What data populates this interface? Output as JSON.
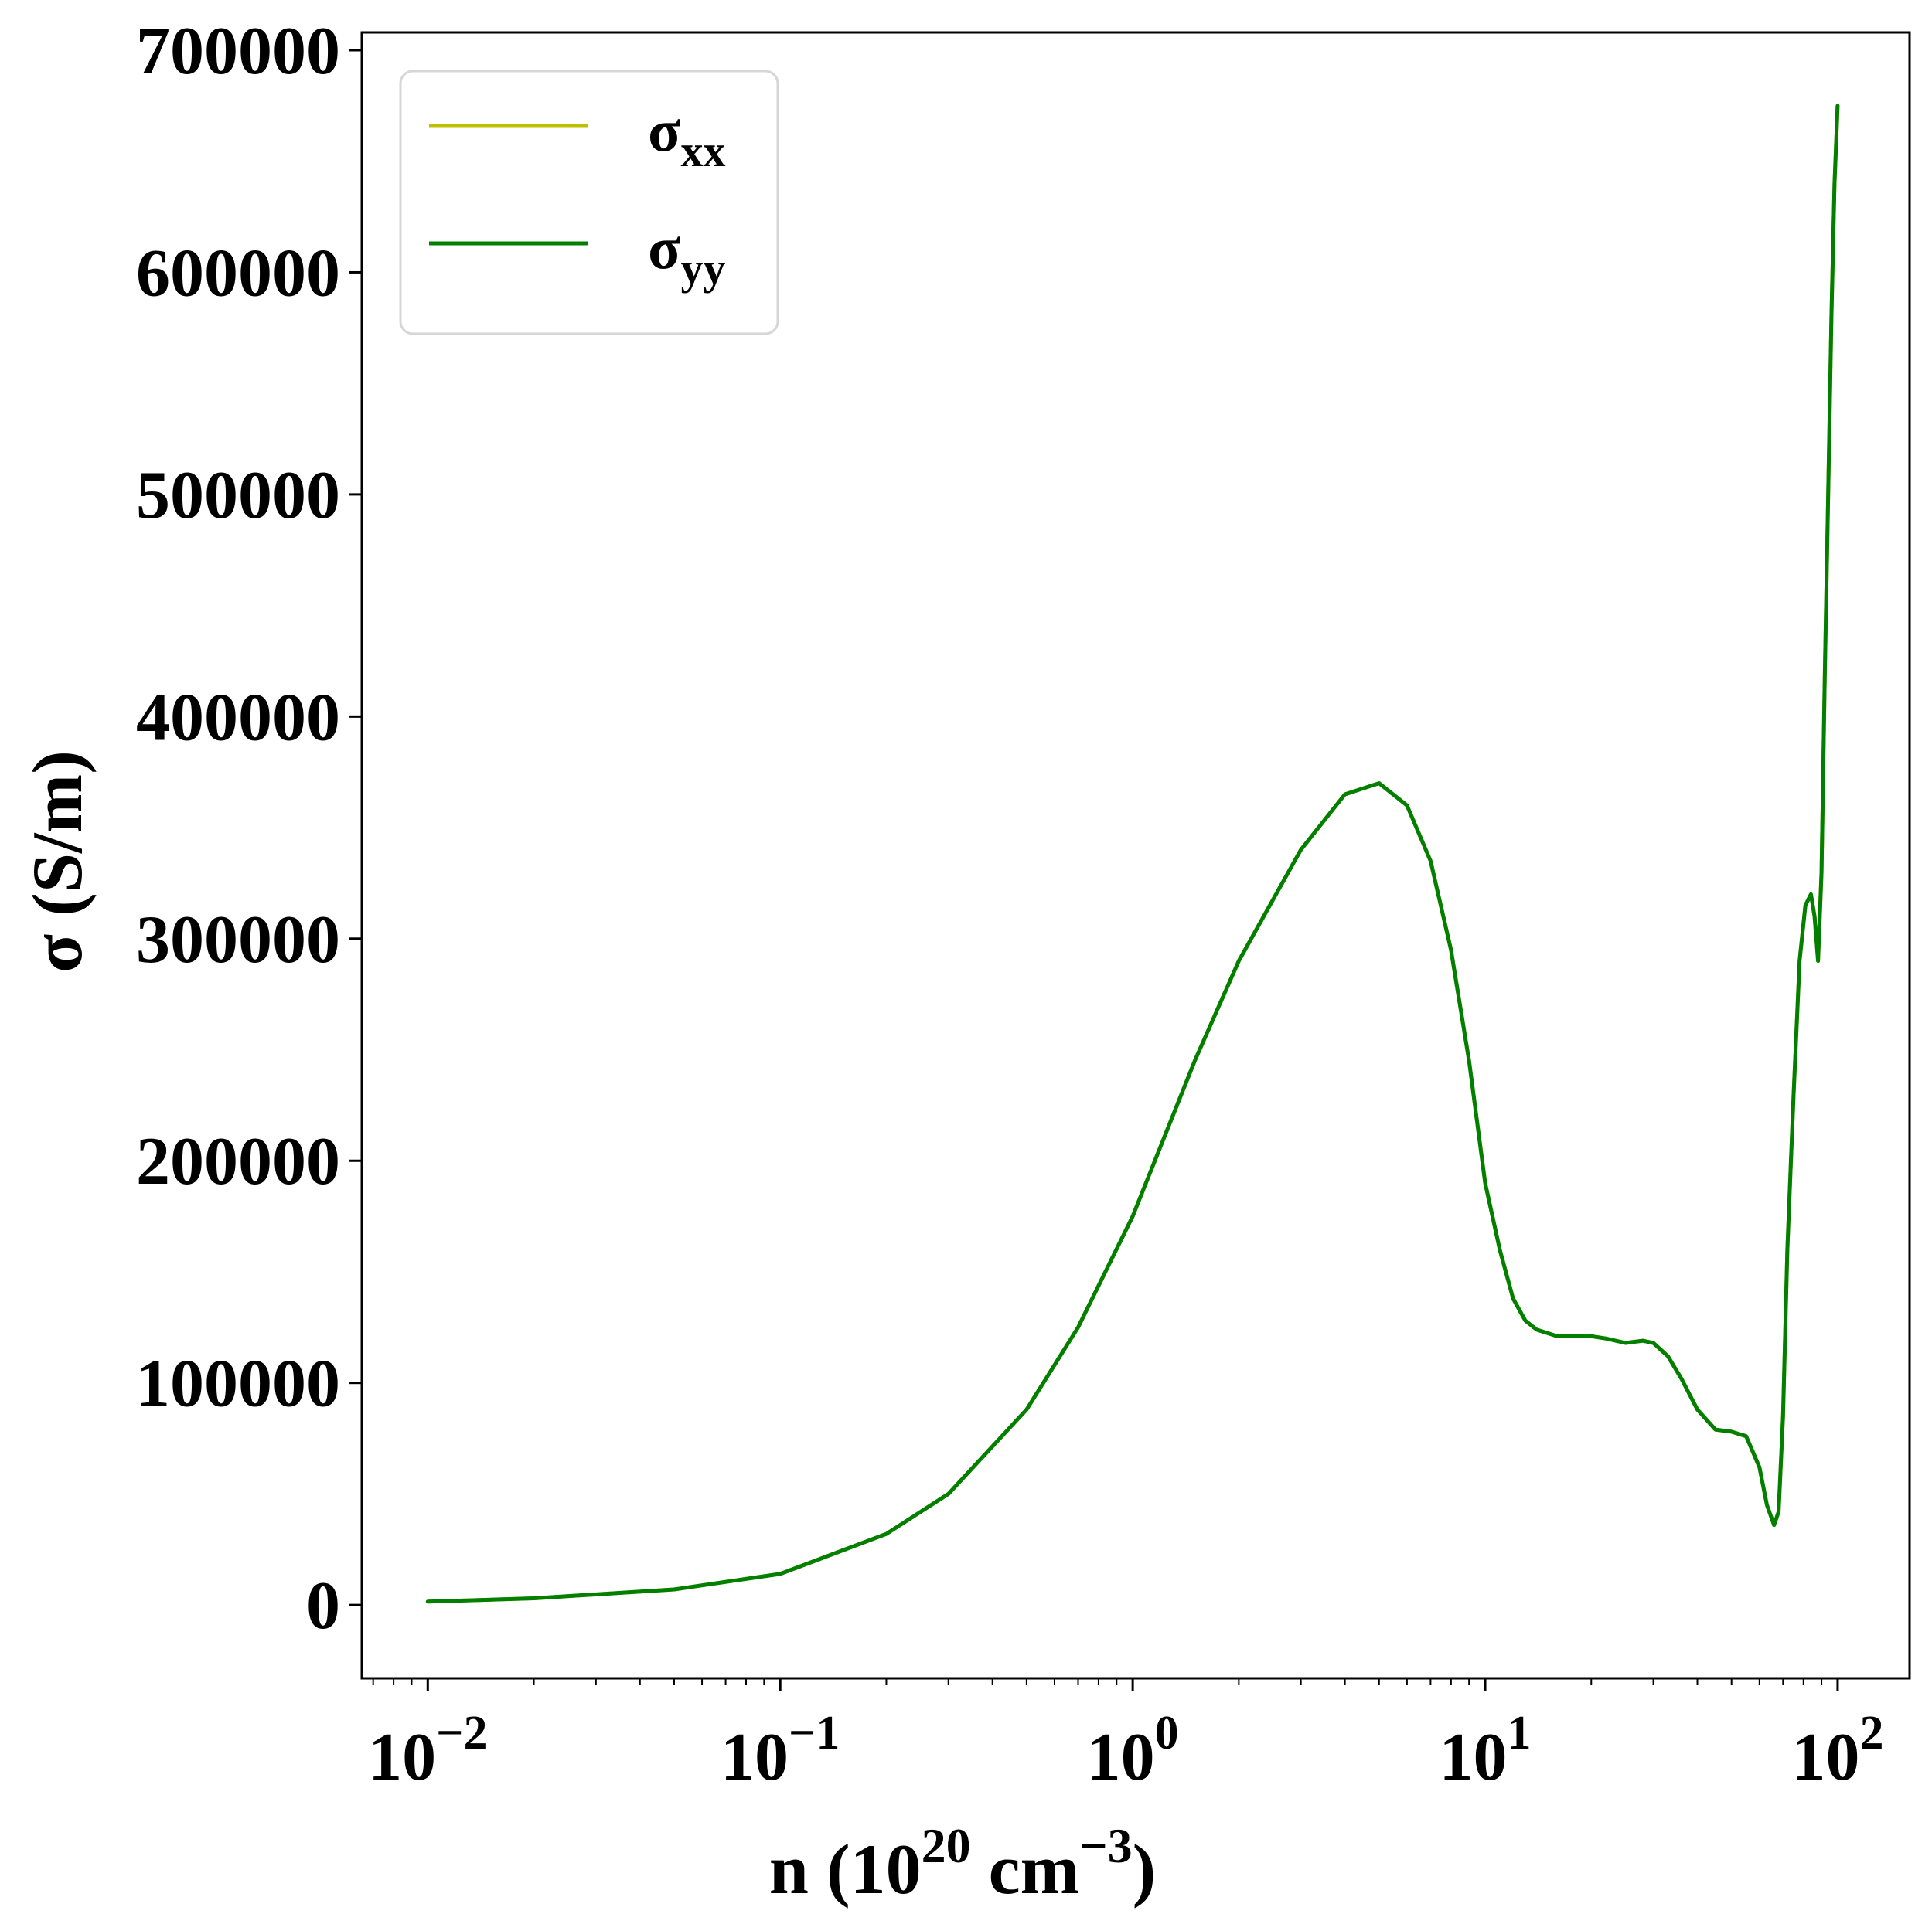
{
  "chart_data": {
    "type": "line",
    "title": "",
    "xlabel": {
      "base": "n (10",
      "sup1": "20",
      "mid": " cm",
      "sup2": "−3",
      "end": ")"
    },
    "ylabel": "σ (S/m)",
    "xscale": "log",
    "xlim": [
      0.0065,
      160
    ],
    "ylim": [
      -33000,
      708000
    ],
    "x_ticks": [
      {
        "base": "10",
        "exp": "−2",
        "value": 0.01
      },
      {
        "base": "10",
        "exp": "−1",
        "value": 0.1
      },
      {
        "base": "10",
        "exp": "0",
        "value": 1
      },
      {
        "base": "10",
        "exp": "1",
        "value": 10
      },
      {
        "base": "10",
        "exp": "2",
        "value": 100
      }
    ],
    "y_ticks": [
      {
        "label": "0",
        "value": 0
      },
      {
        "label": "100000",
        "value": 100000
      },
      {
        "label": "200000",
        "value": 200000
      },
      {
        "label": "300000",
        "value": 300000
      },
      {
        "label": "400000",
        "value": 400000
      },
      {
        "label": "500000",
        "value": 500000
      },
      {
        "label": "600000",
        "value": 600000
      },
      {
        "label": "700000",
        "value": 700000
      }
    ],
    "grid": false,
    "legend_position": "upper-left",
    "series": [
      {
        "name_base": "σ",
        "name_sub": "xx",
        "color": "#bfbf00",
        "x": [
          0.01,
          0.02,
          0.05,
          0.1,
          0.2,
          0.3,
          0.5,
          0.7,
          1.0,
          1.5,
          2.0,
          3.0,
          4.0,
          5.0,
          6.0,
          7.0,
          8.0,
          9.0,
          10,
          11,
          12,
          13,
          14,
          16,
          18,
          20,
          22,
          25,
          28,
          30,
          33,
          36,
          40,
          45,
          50,
          55,
          60,
          63,
          66,
          68,
          70,
          72,
          75,
          78,
          81,
          84,
          86,
          88,
          90,
          92,
          94,
          96,
          98,
          100
        ],
        "y": [
          1500,
          3000,
          7000,
          14000,
          32000,
          50000,
          88000,
          125000,
          175000,
          245000,
          290000,
          340000,
          365000,
          370000,
          360000,
          335000,
          295000,
          245000,
          190000,
          160000,
          138000,
          128000,
          124000,
          121000,
          121000,
          121000,
          120000,
          118000,
          119000,
          118000,
          112000,
          102000,
          88000,
          79000,
          78000,
          76000,
          62000,
          45000,
          36000,
          42000,
          85000,
          160000,
          230000,
          290000,
          315000,
          320000,
          310000,
          290000,
          330000,
          420000,
          500000,
          580000,
          640000,
          675000
        ]
      },
      {
        "name_base": "σ",
        "name_sub": "yy",
        "color": "#007f00",
        "x": [
          0.01,
          0.02,
          0.05,
          0.1,
          0.2,
          0.3,
          0.5,
          0.7,
          1.0,
          1.5,
          2.0,
          3.0,
          4.0,
          5.0,
          6.0,
          7.0,
          8.0,
          9.0,
          10,
          11,
          12,
          13,
          14,
          16,
          18,
          20,
          22,
          25,
          28,
          30,
          33,
          36,
          40,
          45,
          50,
          55,
          60,
          63,
          66,
          68,
          70,
          72,
          75,
          78,
          81,
          84,
          86,
          88,
          90,
          92,
          94,
          96,
          98,
          100
        ],
        "y": [
          1500,
          3000,
          7000,
          14000,
          32000,
          50000,
          88000,
          125000,
          175000,
          245000,
          290000,
          340000,
          365000,
          370000,
          360000,
          335000,
          295000,
          245000,
          190000,
          160000,
          138000,
          128000,
          124000,
          121000,
          121000,
          121000,
          120000,
          118000,
          119000,
          118000,
          112000,
          102000,
          88000,
          79000,
          78000,
          76000,
          62000,
          45000,
          36000,
          42000,
          85000,
          160000,
          230000,
          290000,
          315000,
          320000,
          310000,
          290000,
          330000,
          420000,
          500000,
          580000,
          640000,
          675000
        ]
      }
    ]
  }
}
